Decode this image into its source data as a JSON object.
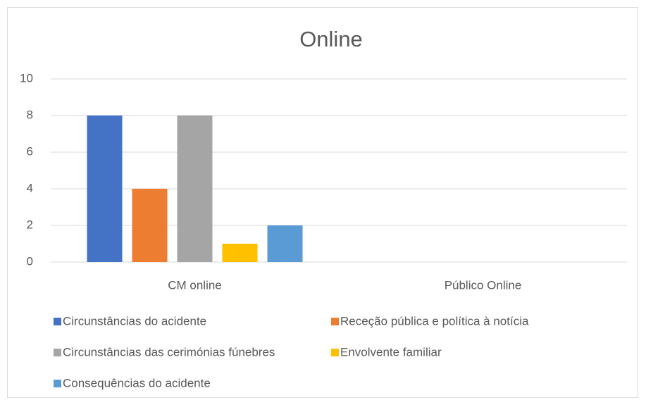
{
  "chart_data": {
    "type": "bar",
    "title": "Online",
    "categories": [
      "CM online",
      "Público Online"
    ],
    "series": [
      {
        "name": "Circunstâncias do acidente",
        "color": "#4472c4",
        "values": [
          8,
          0
        ]
      },
      {
        "name": "Receção pública e política à notícia",
        "color": "#ed7d31",
        "values": [
          4,
          0
        ]
      },
      {
        "name": "Circunstâncias das cerimónias fúnebres",
        "color": "#a5a5a5",
        "values": [
          8,
          0
        ]
      },
      {
        "name": "Envolvente familiar",
        "color": "#ffc000",
        "values": [
          1,
          0
        ]
      },
      {
        "name": "Consequências do acidente",
        "color": "#5b9bd5",
        "values": [
          2,
          0
        ]
      }
    ],
    "ylim": [
      0,
      10
    ],
    "yticks": [
      0,
      2,
      4,
      6,
      8,
      10
    ],
    "grid": true,
    "legend": "bottom"
  }
}
